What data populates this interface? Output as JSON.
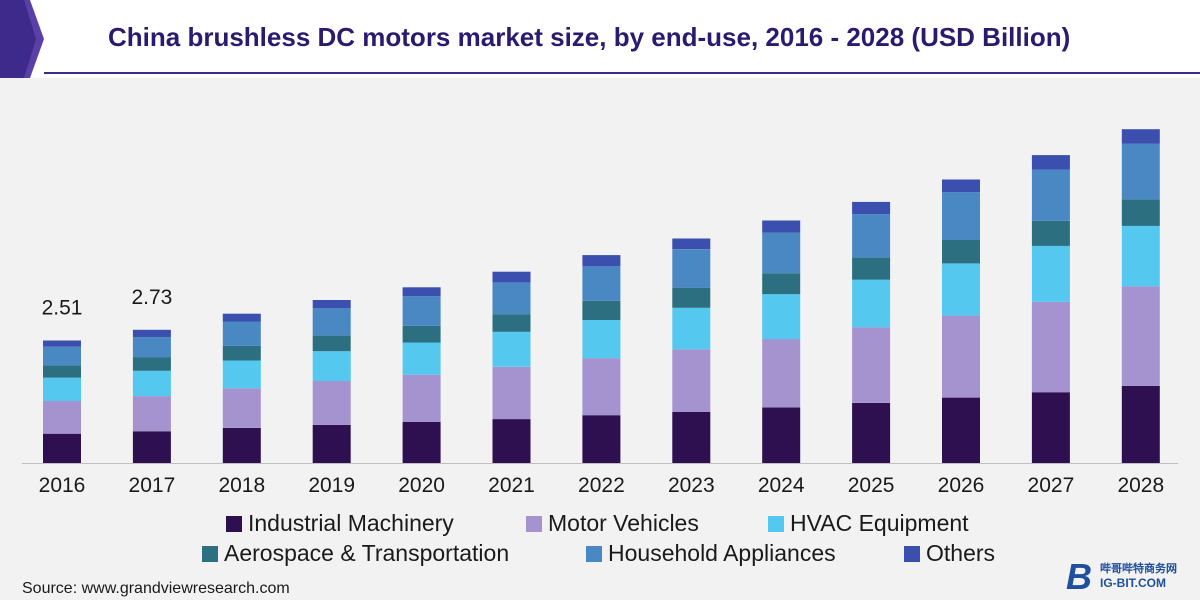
{
  "title": "China brushless DC motors market size, by end-use, 2016 - 2028 (USD Billion)",
  "source": "Source: www.grandviewresearch.com",
  "logo": {
    "big": "B",
    "cn": "哔哥哔特商务网",
    "en": "IG-BIT.COM"
  },
  "colors": {
    "Industrial Machinery": "#2e0f4f",
    "Motor Vehicles": "#a493cf",
    "HVAC Equipment": "#55c8f0",
    "Aerospace & Transportation": "#2b6f80",
    "Household Appliances": "#4a88c4",
    "Others": "#3b4fae"
  },
  "chart_data": {
    "type": "bar",
    "stacked": true,
    "title": "China brushless DC motors market size, by end-use, 2016 - 2028 (USD Billion)",
    "xlabel": "",
    "ylabel": "",
    "ylim": [
      0,
      7.5
    ],
    "categories": [
      "2016",
      "2017",
      "2018",
      "2019",
      "2020",
      "2021",
      "2022",
      "2023",
      "2024",
      "2025",
      "2026",
      "2027",
      "2028"
    ],
    "series": [
      {
        "name": "Industrial Machinery",
        "values": [
          0.6,
          0.65,
          0.72,
          0.78,
          0.84,
          0.9,
          0.98,
          1.05,
          1.14,
          1.23,
          1.34,
          1.45,
          1.58
        ]
      },
      {
        "name": "Motor Vehicles",
        "values": [
          0.67,
          0.72,
          0.81,
          0.9,
          0.97,
          1.07,
          1.17,
          1.28,
          1.4,
          1.55,
          1.68,
          1.85,
          2.04
        ]
      },
      {
        "name": "HVAC Equipment",
        "values": [
          0.48,
          0.52,
          0.57,
          0.61,
          0.66,
          0.72,
          0.78,
          0.85,
          0.92,
          0.98,
          1.07,
          1.15,
          1.24
        ]
      },
      {
        "name": "Aerospace & Transportation",
        "values": [
          0.25,
          0.28,
          0.3,
          0.32,
          0.34,
          0.36,
          0.39,
          0.41,
          0.43,
          0.45,
          0.48,
          0.51,
          0.54
        ]
      },
      {
        "name": "Household Appliances",
        "values": [
          0.38,
          0.41,
          0.5,
          0.56,
          0.61,
          0.65,
          0.71,
          0.79,
          0.83,
          0.89,
          0.98,
          1.05,
          1.14
        ]
      },
      {
        "name": "Others",
        "values": [
          0.13,
          0.15,
          0.16,
          0.17,
          0.18,
          0.22,
          0.23,
          0.22,
          0.25,
          0.25,
          0.26,
          0.3,
          0.3
        ]
      }
    ],
    "data_labels": [
      {
        "category": "2016",
        "text": "2.51"
      },
      {
        "category": "2017",
        "text": "2.73"
      }
    ],
    "legend": "bottom",
    "grid": false
  }
}
